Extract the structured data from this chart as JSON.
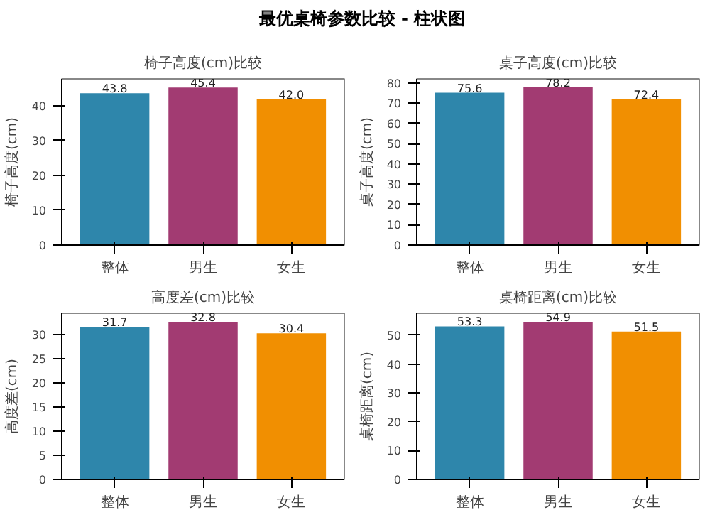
{
  "chart_data": [
    {
      "type": "bar",
      "title": "椅子高度(cm)比较",
      "ylabel": "椅子高度(cm)",
      "annotations": [
        "最优桌椅参数比较 - 柱状图"
      ],
      "categories": [
        "整体",
        "男生",
        "女生"
      ],
      "values": [
        43.8,
        45.4,
        42.0
      ],
      "value_labels": [
        "43.8",
        "45.4",
        "42.0"
      ],
      "colors": [
        "#2e86ab",
        "#a23b72",
        "#f18f01"
      ],
      "ylim": [
        0,
        47.7
      ],
      "yticks": [
        0,
        10,
        20,
        30,
        40
      ],
      "grid": false
    },
    {
      "type": "bar",
      "title": "桌子高度(cm)比较",
      "ylabel": "桌子高度(cm)",
      "categories": [
        "整体",
        "男生",
        "女生"
      ],
      "values": [
        75.6,
        78.2,
        72.4
      ],
      "value_labels": [
        "75.6",
        "78.2",
        "72.4"
      ],
      "colors": [
        "#2e86ab",
        "#a23b72",
        "#f18f01"
      ],
      "ylim": [
        0,
        82.1
      ],
      "yticks": [
        0,
        10,
        20,
        30,
        40,
        50,
        60,
        70,
        80
      ],
      "grid": false
    },
    {
      "type": "bar",
      "title": "高度差(cm)比较",
      "ylabel": "高度差(cm)",
      "categories": [
        "整体",
        "男生",
        "女生"
      ],
      "values": [
        31.7,
        32.8,
        30.4
      ],
      "value_labels": [
        "31.7",
        "32.8",
        "30.4"
      ],
      "colors": [
        "#2e86ab",
        "#a23b72",
        "#f18f01"
      ],
      "ylim": [
        0,
        34.4
      ],
      "yticks": [
        0,
        5,
        10,
        15,
        20,
        25,
        30
      ],
      "grid": false
    },
    {
      "type": "bar",
      "title": "桌椅距离(cm)比较",
      "ylabel": "桌椅距离(cm)",
      "categories": [
        "整体",
        "男生",
        "女生"
      ],
      "values": [
        53.3,
        54.9,
        51.5
      ],
      "value_labels": [
        "53.3",
        "54.9",
        "51.5"
      ],
      "colors": [
        "#2e86ab",
        "#a23b72",
        "#f18f01"
      ],
      "ylim": [
        0,
        57.6
      ],
      "yticks": [
        0,
        10,
        20,
        30,
        40,
        50
      ],
      "grid": false
    }
  ]
}
